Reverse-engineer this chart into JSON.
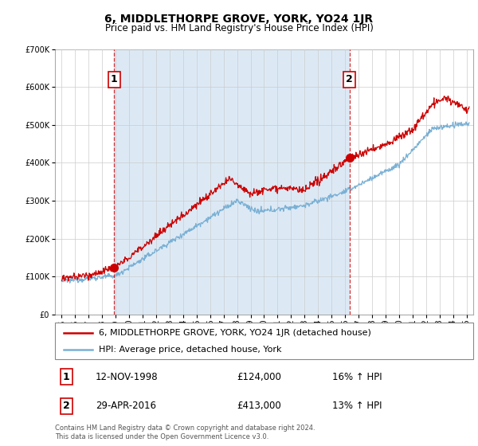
{
  "title": "6, MIDDLETHORPE GROVE, YORK, YO24 1JR",
  "subtitle": "Price paid vs. HM Land Registry's House Price Index (HPI)",
  "legend_line1": "6, MIDDLETHORPE GROVE, YORK, YO24 1JR (detached house)",
  "legend_line2": "HPI: Average price, detached house, York",
  "footnote": "Contains HM Land Registry data © Crown copyright and database right 2024.\nThis data is licensed under the Open Government Licence v3.0.",
  "sale1_label": "1",
  "sale1_date": "12-NOV-1998",
  "sale1_price": "£124,000",
  "sale1_hpi": "16% ↑ HPI",
  "sale2_label": "2",
  "sale2_date": "29-APR-2016",
  "sale2_price": "£413,000",
  "sale2_hpi": "13% ↑ HPI",
  "sale1_x": 1998.87,
  "sale1_y": 124000,
  "sale2_x": 2016.33,
  "sale2_y": 413000,
  "ylim": [
    0,
    700000
  ],
  "xlim": [
    1994.5,
    2025.5
  ],
  "yticks": [
    0,
    100000,
    200000,
    300000,
    400000,
    500000,
    600000,
    700000
  ],
  "xticks": [
    1995,
    1996,
    1997,
    1998,
    1999,
    2000,
    2001,
    2002,
    2003,
    2004,
    2005,
    2006,
    2007,
    2008,
    2009,
    2010,
    2011,
    2012,
    2013,
    2014,
    2015,
    2016,
    2017,
    2018,
    2019,
    2020,
    2021,
    2022,
    2023,
    2024,
    2025
  ],
  "red_color": "#cc0000",
  "blue_color": "#7ab0d4",
  "shade_color": "#dce9f5",
  "background_color": "#ffffff",
  "grid_color": "#cccccc",
  "vline_color": "#cc0000",
  "title_fontsize": 10,
  "subtitle_fontsize": 8.5,
  "tick_fontsize": 7,
  "legend_fontsize": 8,
  "table_fontsize": 8.5
}
